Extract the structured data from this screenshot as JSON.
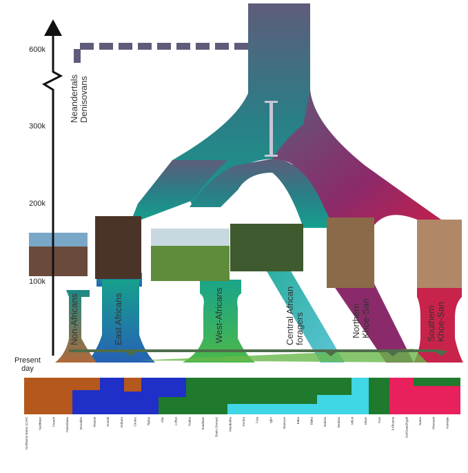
{
  "axis": {
    "ticks": [
      "600k",
      "300k",
      "200k",
      "100k"
    ],
    "present": [
      "Present",
      "day"
    ]
  },
  "archaic": [
    "Neandertals",
    "Denisovans"
  ],
  "groups": [
    {
      "lines": [
        "Non-Africans"
      ]
    },
    {
      "lines": [
        "East Africans"
      ]
    },
    {
      "lines": [
        "West-Africans"
      ]
    },
    {
      "lines": [
        "Central African",
        "foragers"
      ]
    },
    {
      "lines": [
        "Northern",
        "Khoe-San"
      ]
    },
    {
      "lines": [
        "Southern",
        "Khoe-San"
      ]
    }
  ],
  "populations": [
    "Northwest Bantu (CAR)",
    "Sardinian",
    "French",
    "Palestinian",
    "Mozabite",
    "Maasai",
    "Somali",
    "Amhara",
    "Oromo",
    "Tigray",
    "Afar",
    "Luhya",
    "Hadza",
    "Sandawe",
    "Bantu (Kenya)",
    "Mandenka",
    "Yoruba",
    "Fula",
    "Igbo",
    "Bamoun",
    "Baka",
    "Biaka",
    "Bakola",
    "Bedzan",
    "Mbuti",
    "Khwe",
    "!Xun",
    "Ju|'hoansi",
    "Gui/Gana/Kgali",
    "Nama",
    "Khomani",
    "Karretjie"
  ]
}
